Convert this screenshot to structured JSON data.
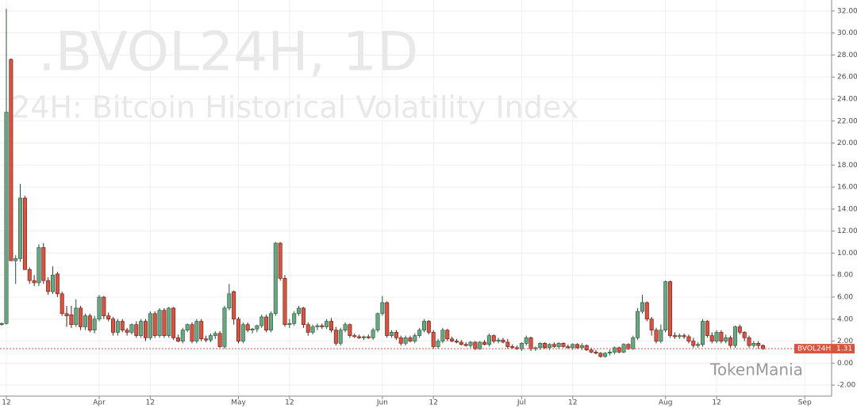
{
  "chart_data": {
    "type": "candlestick",
    "title": ".BVOL24H, 1D",
    "subtitle": "24H: Bitcoin Historical Volatility Index",
    "watermark": "TokenMania",
    "name": "BVOL24H",
    "up_color": "#6ba583",
    "down_color": "#d75442",
    "grid": true,
    "ylim": [
      -3,
      33
    ],
    "yticks": [
      {
        "value": -2,
        "label": "-2.00"
      },
      {
        "value": 0,
        "label": "0.00"
      },
      {
        "value": 2,
        "label": "2.00"
      },
      {
        "value": 4,
        "label": "4.00"
      },
      {
        "value": 6,
        "label": "6.00"
      },
      {
        "value": 8,
        "label": "8.00"
      },
      {
        "value": 10,
        "label": "10.00"
      },
      {
        "value": 12,
        "label": "12.00"
      },
      {
        "value": 14,
        "label": "14.00"
      },
      {
        "value": 16,
        "label": "16.00"
      },
      {
        "value": 18,
        "label": "18.00"
      },
      {
        "value": 20,
        "label": "20.00"
      },
      {
        "value": 22,
        "label": "22.00"
      },
      {
        "value": 24,
        "label": "24.00"
      },
      {
        "value": 26,
        "label": "26.00"
      },
      {
        "value": 28,
        "label": "28.00"
      },
      {
        "value": 30,
        "label": "30.00"
      },
      {
        "value": 32,
        "label": "32.00"
      }
    ],
    "categories": [
      null,
      "12",
      null,
      null,
      null,
      null,
      null,
      null,
      null,
      null,
      null,
      null,
      null,
      null,
      null,
      null,
      null,
      null,
      null,
      null,
      null,
      "Apr",
      null,
      null,
      null,
      null,
      null,
      null,
      null,
      null,
      null,
      null,
      "12",
      null,
      null,
      null,
      null,
      null,
      null,
      null,
      null,
      null,
      null,
      null,
      null,
      null,
      null,
      null,
      null,
      null,
      null,
      "May",
      null,
      null,
      null,
      null,
      null,
      null,
      null,
      null,
      null,
      null,
      "12",
      null,
      null,
      null,
      null,
      null,
      null,
      null,
      null,
      null,
      null,
      null,
      null,
      null,
      null,
      null,
      null,
      null,
      null,
      null,
      "Jun",
      null,
      null,
      null,
      null,
      null,
      null,
      null,
      null,
      null,
      null,
      "12",
      null,
      null,
      null,
      null,
      null,
      null,
      null,
      null,
      null,
      null,
      null,
      null,
      null,
      null,
      null,
      null,
      null,
      null,
      "Jul",
      null,
      null,
      null,
      null,
      null,
      null,
      null,
      null,
      null,
      null,
      "12",
      null,
      null,
      null,
      null,
      null,
      null,
      null,
      null,
      null,
      null,
      null,
      null,
      null,
      null,
      null,
      null,
      null,
      null,
      null,
      "Aug",
      null,
      null,
      null,
      null,
      null,
      null,
      null,
      null,
      null,
      null,
      "12",
      null,
      null,
      null,
      null,
      null,
      null,
      null,
      null,
      null,
      null,
      null,
      null,
      null,
      null,
      null,
      null,
      null,
      null,
      "Sep"
    ],
    "ohlc": [
      [
        3.5,
        3.7,
        3.4,
        3.6
      ],
      [
        3.6,
        32.2,
        3.5,
        22.8
      ],
      [
        27.6,
        27.7,
        9.3,
        9.3
      ],
      [
        9.3,
        9.8,
        7.2,
        9.5
      ],
      [
        9.5,
        16.3,
        9.2,
        15
      ],
      [
        15,
        15.2,
        8.5,
        8.5
      ],
      [
        8.5,
        8.7,
        7.2,
        7.5
      ],
      [
        7.5,
        8,
        7,
        7.3
      ],
      [
        7.3,
        10.8,
        7,
        10.5
      ],
      [
        10.5,
        10.9,
        7.2,
        7.5
      ],
      [
        7.5,
        7.8,
        6.2,
        6.5
      ],
      [
        6.5,
        8.8,
        6.3,
        8
      ],
      [
        8.1,
        8.3,
        6,
        6.3
      ],
      [
        6.3,
        6.5,
        4.3,
        4.5
      ],
      [
        4.5,
        5.2,
        3.3,
        4.3
      ],
      [
        4.4,
        5.2,
        3.2,
        3.5
      ],
      [
        3.5,
        5.8,
        3.3,
        5
      ],
      [
        5,
        5.2,
        3,
        3.3
      ],
      [
        3.3,
        4.5,
        3,
        4.3
      ],
      [
        4.3,
        4.5,
        2.8,
        3
      ],
      [
        3,
        4.3,
        2.7,
        4
      ],
      [
        4,
        6.2,
        3.8,
        6
      ],
      [
        6,
        6.1,
        4,
        4.3
      ],
      [
        4.3,
        4.6,
        3.8,
        4
      ],
      [
        4,
        4.2,
        2.5,
        2.8
      ],
      [
        2.8,
        4,
        2.5,
        3.8
      ],
      [
        3.8,
        4,
        2.8,
        3
      ],
      [
        3,
        3.2,
        2.5,
        2.8
      ],
      [
        2.8,
        3.6,
        2.6,
        3.5
      ],
      [
        3.5,
        3.8,
        2.3,
        2.5
      ],
      [
        2.5,
        4,
        2.3,
        3.8
      ],
      [
        3.8,
        4,
        2,
        2.3
      ],
      [
        2.3,
        4.7,
        2.1,
        4.5
      ],
      [
        4.5,
        4.7,
        2.3,
        2.5
      ],
      [
        2.5,
        5,
        2.3,
        4.8
      ],
      [
        4.8,
        5,
        2.3,
        2.5
      ],
      [
        2.5,
        5.1,
        2.3,
        5
      ],
      [
        5,
        5.1,
        2.1,
        2.3
      ],
      [
        2.3,
        2.6,
        1.9,
        2
      ],
      [
        2,
        3.2,
        1.8,
        3
      ],
      [
        3,
        3.6,
        2.8,
        3.5
      ],
      [
        3.5,
        3.7,
        1.8,
        2
      ],
      [
        2,
        4,
        1.8,
        3.8
      ],
      [
        3.8,
        4,
        2,
        2.2
      ],
      [
        2.2,
        2.5,
        1.9,
        2.1
      ],
      [
        2.1,
        2.7,
        1.9,
        2.5
      ],
      [
        2.5,
        2.9,
        2.2,
        2.7
      ],
      [
        2.7,
        2.9,
        1.4,
        1.5
      ],
      [
        1.5,
        5.2,
        1.3,
        5
      ],
      [
        5,
        7.2,
        4.8,
        6.3
      ],
      [
        6.5,
        6.6,
        3.5,
        4
      ],
      [
        4,
        4.2,
        1.8,
        2
      ],
      [
        2,
        3.7,
        1.8,
        3.5
      ],
      [
        3.5,
        3.7,
        2.8,
        3
      ],
      [
        3,
        3.2,
        2.7,
        3.1
      ],
      [
        3.1,
        3.5,
        2.8,
        3.4
      ],
      [
        3.4,
        4.4,
        3.2,
        4.2
      ],
      [
        4.2,
        4.4,
        2.8,
        3
      ],
      [
        3,
        4.7,
        2.8,
        4.5
      ],
      [
        4.5,
        11,
        4.3,
        10.9
      ],
      [
        10.9,
        11,
        7.5,
        7.7
      ],
      [
        7.7,
        8,
        3.3,
        3.5
      ],
      [
        3.5,
        4,
        3.2,
        3.6
      ],
      [
        3.6,
        4.7,
        3.4,
        4.5
      ],
      [
        4.5,
        5.2,
        4.3,
        5
      ],
      [
        5,
        5.1,
        3.2,
        3.5
      ],
      [
        3.5,
        3.7,
        2.5,
        2.8
      ],
      [
        2.8,
        3.5,
        2.6,
        3.3
      ],
      [
        3.3,
        3.6,
        3,
        3.4
      ],
      [
        3.4,
        3.6,
        3.1,
        3.3
      ],
      [
        3.3,
        4,
        3.1,
        3.8
      ],
      [
        3.8,
        4.1,
        2.8,
        3
      ],
      [
        3,
        3.3,
        1.6,
        1.8
      ],
      [
        1.8,
        3.2,
        1.6,
        3
      ],
      [
        3,
        3.7,
        2.8,
        3.5
      ],
      [
        3.5,
        3.6,
        2.3,
        2.5
      ],
      [
        2.5,
        2.7,
        2.3,
        2.4
      ],
      [
        2.4,
        2.6,
        2.2,
        2.3
      ],
      [
        2.3,
        2.5,
        2.1,
        2.4
      ],
      [
        2.4,
        2.6,
        2.2,
        2.3
      ],
      [
        2.3,
        3.2,
        2.1,
        3
      ],
      [
        3,
        4.6,
        2.8,
        4.5
      ],
      [
        4.5,
        6.1,
        4.3,
        5.5
      ],
      [
        5.5,
        5.6,
        2.3,
        2.5
      ],
      [
        2.5,
        3,
        2.3,
        2.8
      ],
      [
        2.8,
        3,
        2.1,
        2.3
      ],
      [
        2.3,
        2.5,
        1.6,
        1.8
      ],
      [
        1.8,
        2.5,
        1.6,
        2.3
      ],
      [
        2.3,
        2.5,
        1.9,
        2
      ],
      [
        2,
        2.7,
        1.8,
        2.5
      ],
      [
        2.5,
        3.2,
        2.3,
        3
      ],
      [
        3,
        4,
        2.8,
        3.8
      ],
      [
        3.8,
        3.9,
        2.6,
        2.8
      ],
      [
        2.8,
        3,
        1.3,
        1.5
      ],
      [
        1.5,
        2.2,
        1.3,
        2
      ],
      [
        2,
        3.2,
        1.8,
        3
      ],
      [
        3,
        3.1,
        2,
        2.2
      ],
      [
        2.2,
        2.4,
        1.9,
        2
      ],
      [
        2,
        2.2,
        1.8,
        1.9
      ],
      [
        1.9,
        2.1,
        1.6,
        1.7
      ],
      [
        1.7,
        1.9,
        1.5,
        1.6
      ],
      [
        1.6,
        2,
        1.4,
        1.9
      ],
      [
        1.9,
        2,
        1.2,
        1.3
      ],
      [
        1.3,
        2,
        1.2,
        1.9
      ],
      [
        1.9,
        2.1,
        1.6,
        1.7
      ],
      [
        1.7,
        2.7,
        1.5,
        2.5
      ],
      [
        2.5,
        2.6,
        1.8,
        2
      ],
      [
        2,
        2.3,
        1.8,
        2.1
      ],
      [
        2.1,
        2.3,
        1.8,
        1.9
      ],
      [
        1.9,
        2.2,
        1.3,
        1.5
      ],
      [
        1.5,
        1.7,
        1.3,
        1.4
      ],
      [
        1.4,
        1.6,
        1.2,
        1.3
      ],
      [
        1.3,
        1.9,
        1.1,
        1.8
      ],
      [
        1.8,
        2.5,
        1.6,
        2.3
      ],
      [
        2.3,
        2.4,
        1.1,
        1.3
      ],
      [
        1.3,
        1.5,
        1.1,
        1.4
      ],
      [
        1.4,
        1.9,
        1.2,
        1.8
      ],
      [
        1.8,
        1.9,
        1.3,
        1.4
      ],
      [
        1.4,
        1.8,
        1.2,
        1.7
      ],
      [
        1.7,
        1.9,
        1.4,
        1.5
      ],
      [
        1.5,
        1.9,
        1.3,
        1.8
      ],
      [
        1.8,
        1.9,
        1.4,
        1.5
      ],
      [
        1.5,
        1.7,
        1.3,
        1.4
      ],
      [
        1.4,
        1.8,
        1.2,
        1.7
      ],
      [
        1.7,
        1.8,
        1.3,
        1.4
      ],
      [
        1.4,
        1.8,
        1.2,
        1.6
      ],
      [
        1.6,
        1.7,
        1.1,
        1.2
      ],
      [
        1.2,
        1.4,
        0.9,
        1
      ],
      [
        1,
        1.2,
        0.8,
        0.9
      ],
      [
        0.9,
        1,
        0.5,
        0.6
      ],
      [
        0.6,
        1,
        0.5,
        0.9
      ],
      [
        0.9,
        1.2,
        0.7,
        1
      ],
      [
        1,
        1.5,
        0.8,
        1.4
      ],
      [
        1.4,
        1.5,
        0.9,
        1
      ],
      [
        1,
        1.8,
        0.9,
        1.7
      ],
      [
        1.7,
        1.8,
        1.2,
        1.3
      ],
      [
        1.3,
        2.5,
        1.2,
        2.3
      ],
      [
        2.3,
        5,
        2.1,
        4.7
      ],
      [
        4.7,
        6.2,
        4.5,
        5.5
      ],
      [
        5.5,
        5.6,
        3.8,
        4
      ],
      [
        4,
        4.2,
        2.5,
        3
      ],
      [
        3,
        3.2,
        1.8,
        2
      ],
      [
        2,
        3.5,
        1.8,
        3
      ],
      [
        3,
        7.5,
        2.8,
        7.4
      ],
      [
        7.4,
        7.5,
        2.3,
        2.5
      ],
      [
        2.5,
        2.8,
        2.2,
        2.4
      ],
      [
        2.4,
        2.7,
        2.2,
        2.5
      ],
      [
        2.5,
        2.7,
        2.2,
        2.4
      ],
      [
        2.4,
        2.6,
        1.8,
        2
      ],
      [
        2,
        2.3,
        1.4,
        1.6
      ],
      [
        1.6,
        1.9,
        1.4,
        1.7
      ],
      [
        1.7,
        4,
        1.5,
        3.8
      ],
      [
        3.8,
        3.9,
        2.3,
        2.5
      ],
      [
        2.5,
        2.8,
        1.8,
        2
      ],
      [
        2,
        3,
        1.8,
        2.8
      ],
      [
        2.8,
        3,
        1.8,
        2
      ],
      [
        2,
        2.6,
        1.8,
        2.3
      ],
      [
        2.3,
        2.5,
        1.4,
        1.6
      ],
      [
        1.6,
        3.4,
        1.4,
        3.3
      ],
      [
        3.3,
        3.5,
        2.6,
        2.8
      ],
      [
        2.8,
        2.9,
        2,
        2.3
      ],
      [
        2.3,
        2.5,
        1.4,
        1.6
      ],
      [
        1.6,
        2,
        1.4,
        1.8
      ],
      [
        1.8,
        2,
        1.3,
        1.6
      ],
      [
        1.6,
        1.7,
        1.2,
        1.31
      ],
      null,
      null,
      null,
      null,
      null,
      null,
      null,
      null,
      null,
      null
    ]
  }
}
